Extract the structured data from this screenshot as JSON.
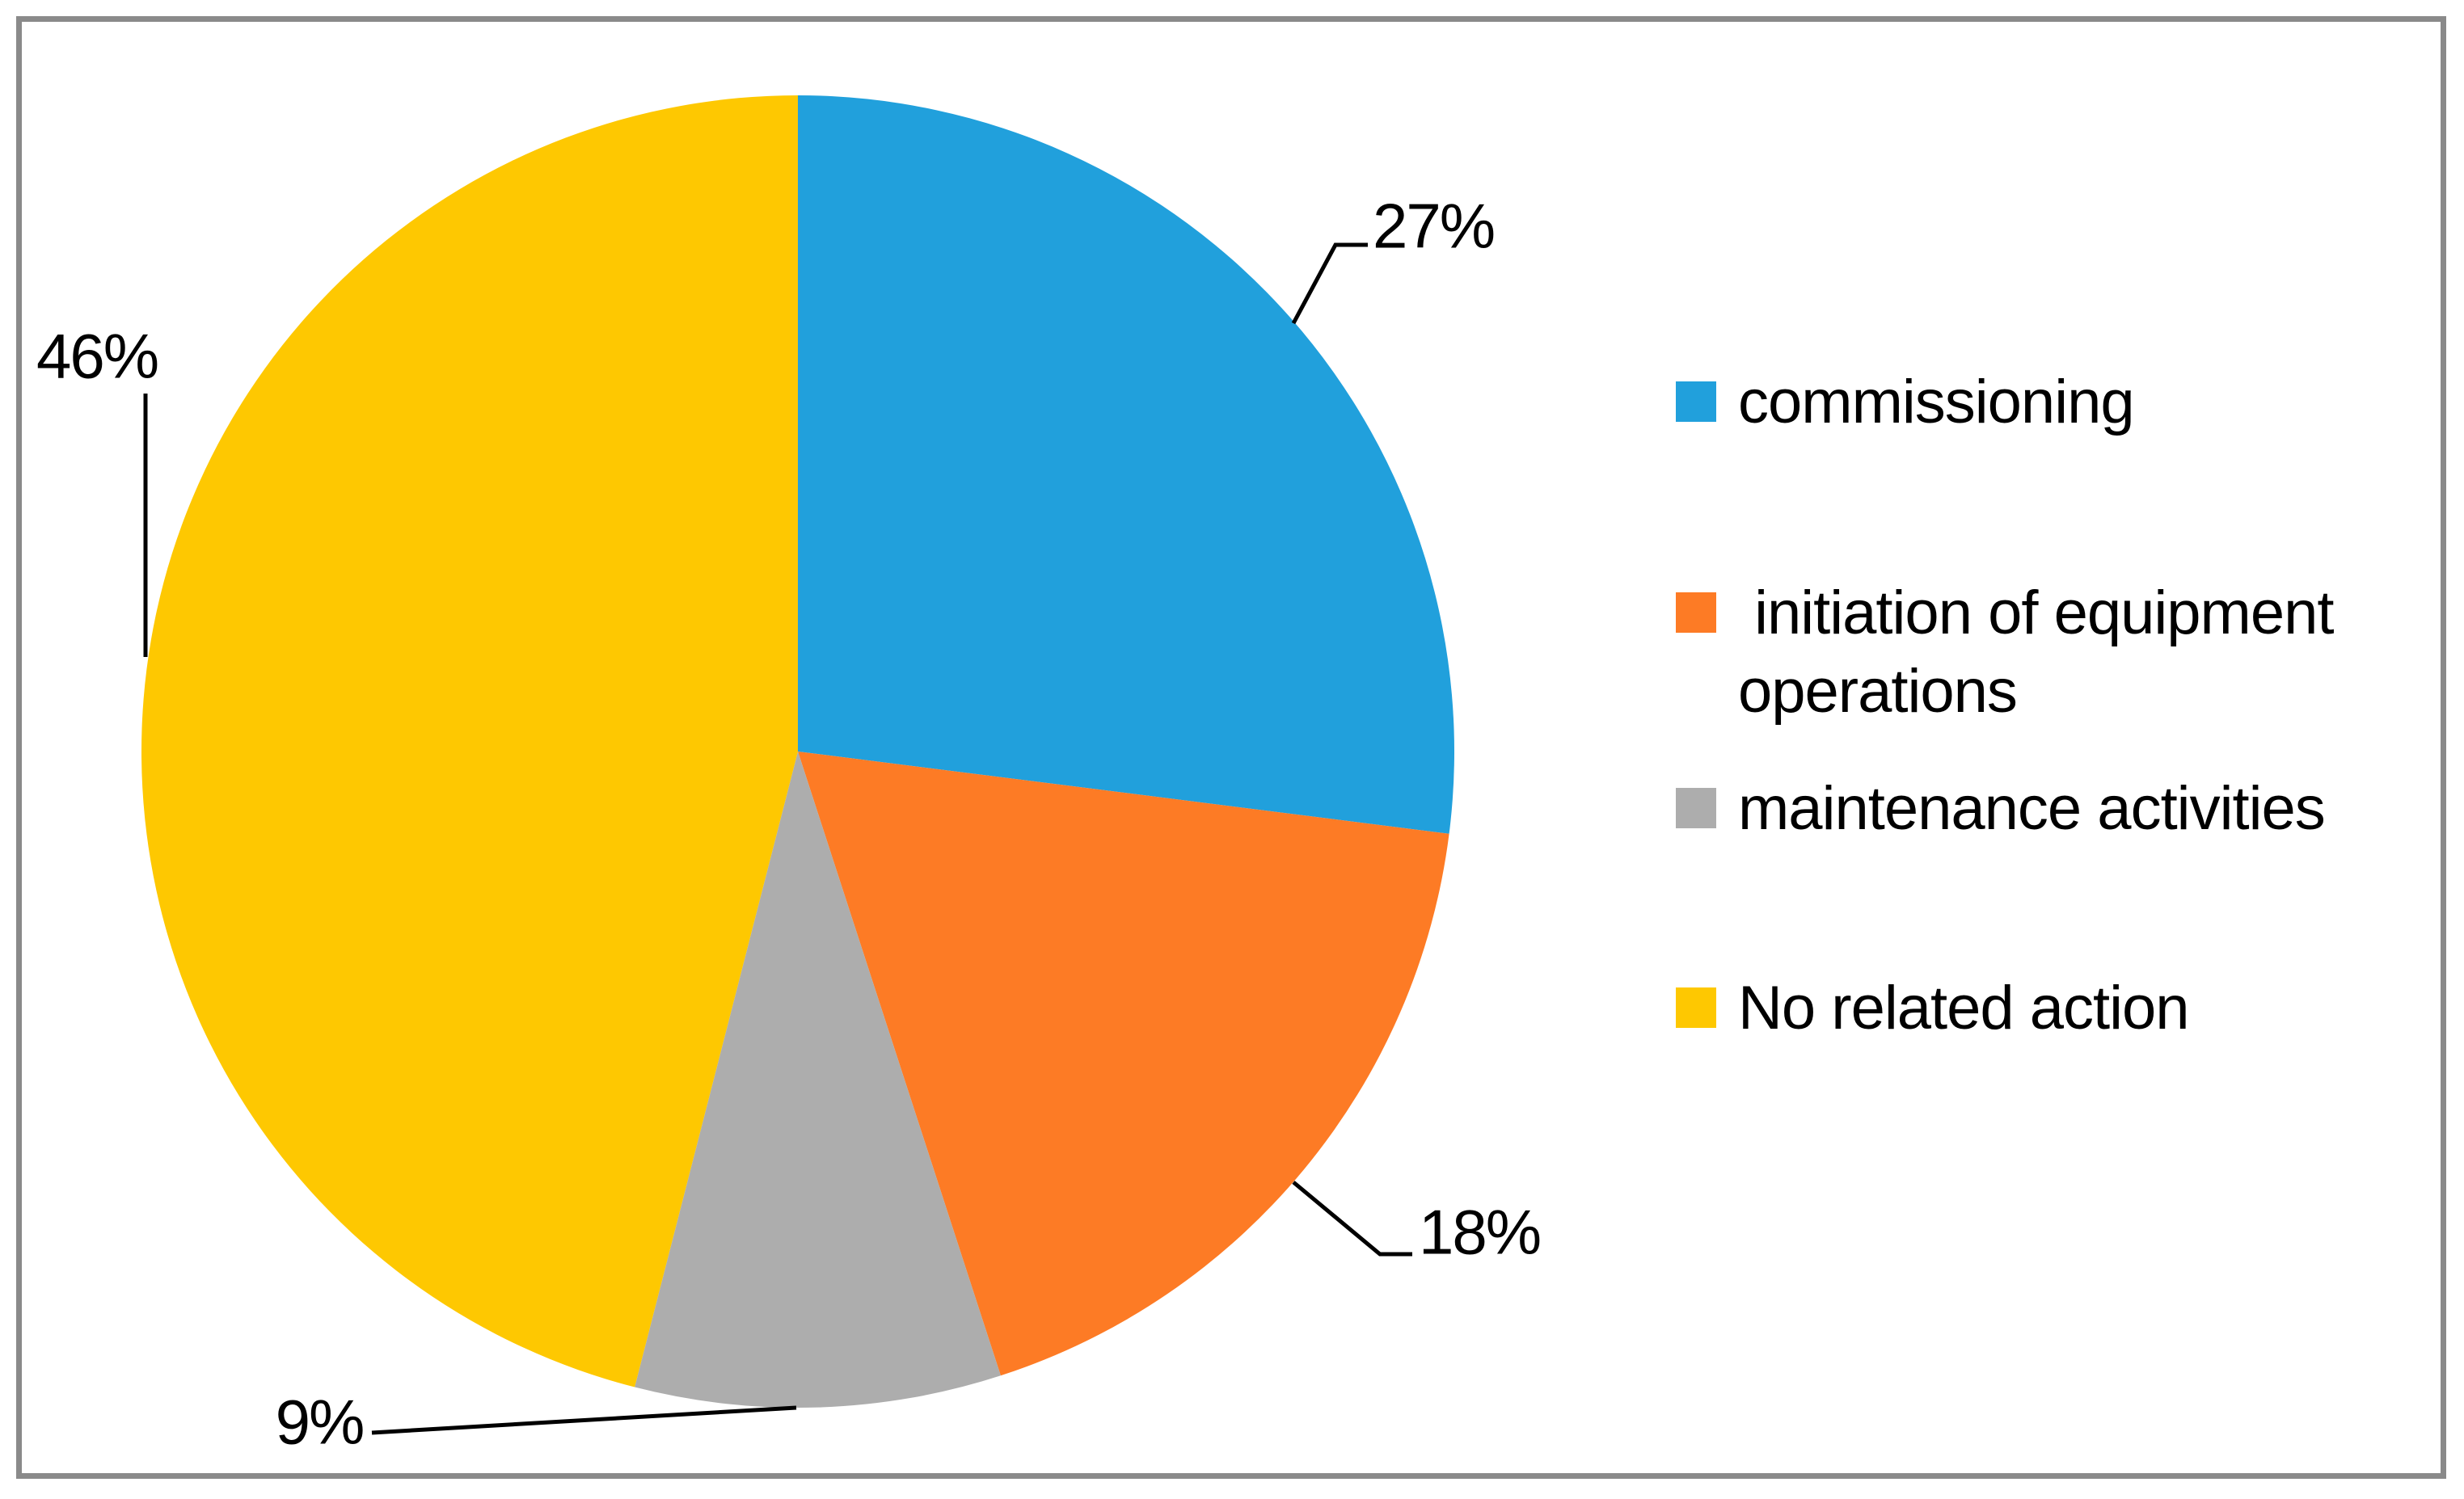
{
  "chart_data": {
    "type": "pie",
    "title": "",
    "direction": "clockwise",
    "start_angle_deg": 0,
    "legend_position": "right",
    "slices": [
      {
        "label": "commissioning",
        "value_pct": 27,
        "color": "#21A0DC",
        "data_label": "27%"
      },
      {
        "label": "initiation of equipment operations",
        "value_pct": 18,
        "color": "#FD7B25",
        "data_label": "18%"
      },
      {
        "label": "maintenance activities",
        "value_pct": 9,
        "color": "#ADADAD",
        "data_label": "9%"
      },
      {
        "label": "No related action",
        "value_pct": 46,
        "color": "#FEC801",
        "data_label": "46%"
      }
    ]
  },
  "legend": {
    "items": [
      {
        "display": "commissioning",
        "color": "#21A0DC"
      },
      {
        "display": " initiation of equipment\noperations",
        "color": "#FD7B25"
      },
      {
        "display": "maintenance activities",
        "color": "#ADADAD"
      },
      {
        "display": "No related action",
        "color": "#FEC801"
      }
    ]
  },
  "frame_color": "#8A8A8A"
}
